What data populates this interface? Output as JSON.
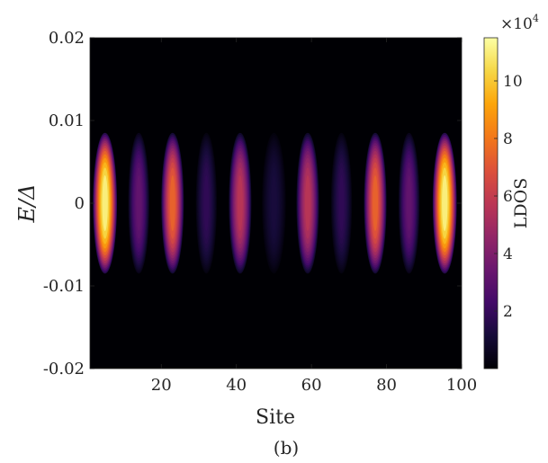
{
  "chart_data": {
    "type": "heatmap",
    "xlabel": "Site",
    "ylabel": "E/Δ",
    "xlim": [
      1,
      100
    ],
    "ylim": [
      -0.02,
      0.02
    ],
    "xticks": [
      20,
      40,
      60,
      80,
      100
    ],
    "yticks": [
      -0.02,
      -0.01,
      0,
      0.01,
      0.02
    ],
    "ytick_labels": [
      "-0.02",
      "-0.01",
      "0",
      "0.01",
      "0.02"
    ],
    "colorbar": {
      "label": "LDOS",
      "multiplier": "×10",
      "exponent": "4",
      "range": [
        0,
        11.5
      ],
      "ticks": [
        2,
        4,
        6,
        8,
        10
      ],
      "colormap": "inferno"
    },
    "ldos_profile": {
      "description_values": "peak LDOS (×10^4) at E = 0 for each intensity maximum along the chain",
      "peaks": [
        {
          "site": 5,
          "value": 11.0,
          "width": 3.2
        },
        {
          "site": 14,
          "value": 3.2,
          "width": 2.8
        },
        {
          "site": 23,
          "value": 7.4,
          "width": 3.0
        },
        {
          "site": 32,
          "value": 1.8,
          "width": 2.8
        },
        {
          "site": 41,
          "value": 5.6,
          "width": 3.0
        },
        {
          "site": 50,
          "value": 1.2,
          "width": 3.2
        },
        {
          "site": 59,
          "value": 5.6,
          "width": 3.0
        },
        {
          "site": 68,
          "value": 1.8,
          "width": 2.8
        },
        {
          "site": 77,
          "value": 7.4,
          "width": 3.0
        },
        {
          "site": 86,
          "value": 3.2,
          "width": 2.8
        },
        {
          "site": 95.5,
          "value": 11.0,
          "width": 3.2
        }
      ],
      "energy_halfwidth": 0.0085
    }
  },
  "caption": "(b)"
}
